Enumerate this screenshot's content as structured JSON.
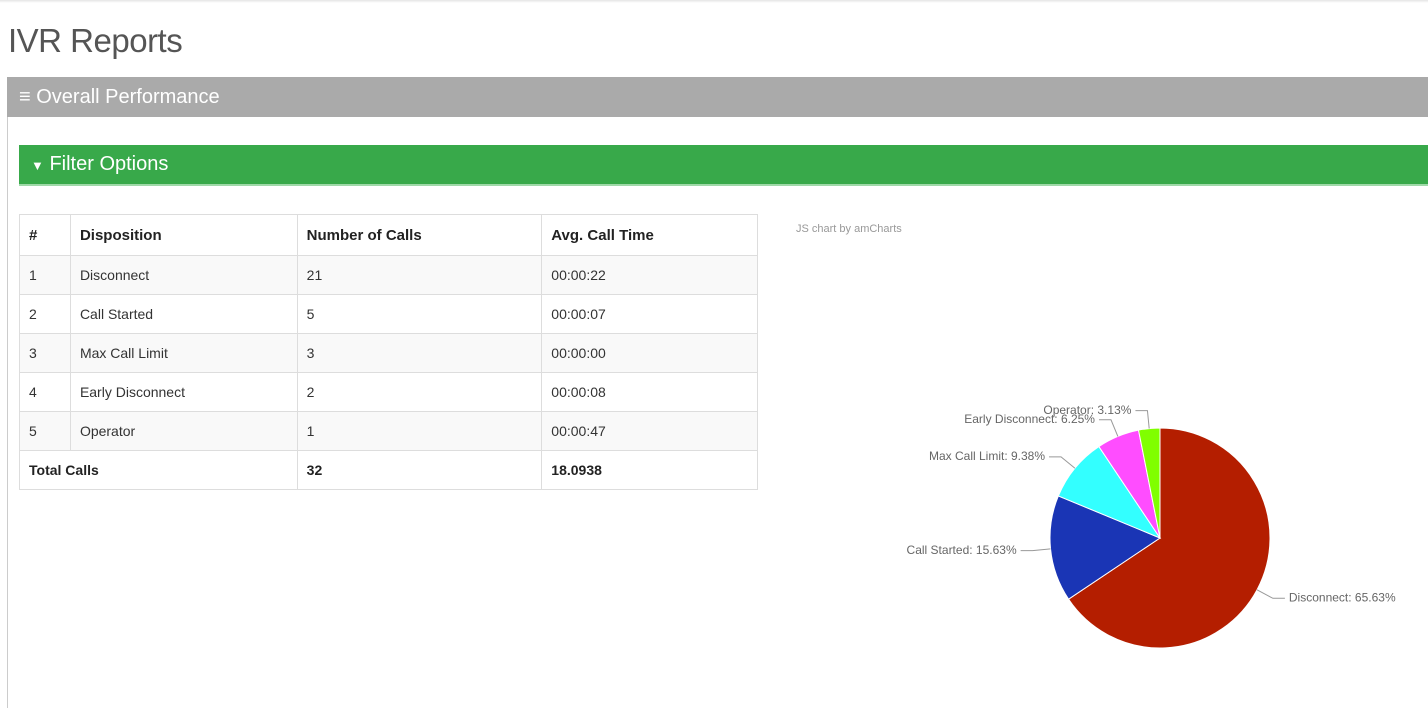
{
  "header": {
    "title": "IVR Reports"
  },
  "panel": {
    "title": "Overall Performance"
  },
  "filter": {
    "title": "Filter Options"
  },
  "table": {
    "columns": [
      "#",
      "Disposition",
      "Number of Calls",
      "Avg. Call Time"
    ],
    "rows": [
      [
        "1",
        "Disconnect",
        "21",
        "00:00:22"
      ],
      [
        "2",
        "Call Started",
        "5",
        "00:00:07"
      ],
      [
        "3",
        "Max Call Limit",
        "3",
        "00:00:00"
      ],
      [
        "4",
        "Early Disconnect",
        "2",
        "00:00:08"
      ],
      [
        "5",
        "Operator",
        "1",
        "00:00:47"
      ]
    ],
    "footer": [
      "Total Calls",
      "32",
      "18.0938"
    ]
  },
  "chart_data": {
    "type": "pie",
    "credit": "JS chart by amCharts",
    "values": [
      65.63,
      15.63,
      9.38,
      6.25,
      3.13
    ],
    "value_labels": [
      "Disconnect: 65.63%",
      "Call Started: 15.63%",
      "Max Call Limit: 9.38%",
      "Early Disconnect: 6.25%",
      "Operator: 3.13%"
    ],
    "colors": [
      "#b41e00",
      "#1a35b5",
      "#33ffff",
      "#ff4dff",
      "#80ff00"
    ]
  }
}
